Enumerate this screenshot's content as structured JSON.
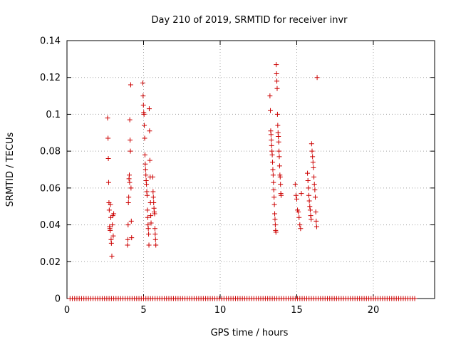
{
  "chart_data": {
    "type": "scatter",
    "title": "Day 210 of 2019, SRMTID for receiver invr",
    "xlabel": "GPS time / hours",
    "ylabel": "SRMTID / TECUs",
    "xlim": [
      0,
      24
    ],
    "ylim": [
      0,
      0.14
    ],
    "xticks": [
      0,
      5,
      10,
      15,
      20
    ],
    "xtick_labels": [
      "0",
      "5",
      "10",
      "15",
      "20"
    ],
    "yticks": [
      0,
      0.02,
      0.04,
      0.06,
      0.08,
      0.1,
      0.12,
      0.14
    ],
    "ytick_labels": [
      "0",
      "0.02",
      "0.04",
      "0.06",
      "0.08",
      "0.1",
      "0.12",
      "0.14"
    ],
    "grid": true,
    "legend": "none",
    "marker": "+",
    "color": "#cc0000",
    "series": [
      {
        "x": [
          2.65,
          2.68,
          2.7,
          2.72,
          2.74,
          2.76,
          2.78,
          2.8,
          2.82,
          2.84,
          2.86,
          2.88,
          2.9,
          2.93,
          2.96,
          2.99,
          3.02,
          3.05,
          3.95,
          3.97,
          3.99,
          4.01,
          4.03,
          4.05,
          4.07,
          4.09,
          4.1,
          4.12,
          4.14,
          4.16,
          4.18,
          4.2,
          4.22,
          4.95,
          4.97,
          4.99,
          5.01,
          5.03,
          5.05,
          5.07,
          5.09,
          5.11,
          5.13,
          5.15,
          5.17,
          5.19,
          5.21,
          5.23,
          5.25,
          5.27,
          5.29,
          5.31,
          5.33,
          5.35,
          5.37,
          5.39,
          5.41,
          5.43,
          5.45,
          5.47,
          5.49,
          5.6,
          5.62,
          5.64,
          5.66,
          5.68,
          5.7,
          5.72,
          5.74,
          5.76,
          5.78,
          5.8,
          13.25,
          13.28,
          13.3,
          13.32,
          13.34,
          13.36,
          13.38,
          13.4,
          13.42,
          13.44,
          13.46,
          13.48,
          13.5,
          13.52,
          13.54,
          13.56,
          13.58,
          13.6,
          13.62,
          13.64,
          13.66,
          13.68,
          13.7,
          13.72,
          13.74,
          13.76,
          13.78,
          13.8,
          13.82,
          13.84,
          13.86,
          13.88,
          13.9,
          13.92,
          13.94,
          13.96,
          13.98,
          14.9,
          14.95,
          15.0,
          15.05,
          15.1,
          15.15,
          15.2,
          15.25,
          15.3,
          15.7,
          15.73,
          15.76,
          15.79,
          15.82,
          15.85,
          15.88,
          15.91,
          15.94,
          15.97,
          16.0,
          16.03,
          16.06,
          16.09,
          16.12,
          16.15,
          16.18,
          16.21,
          16.24,
          16.27,
          16.3,
          16.33
        ],
        "y": [
          0.098,
          0.087,
          0.076,
          0.063,
          0.052,
          0.048,
          0.039,
          0.038,
          0.037,
          0.051,
          0.044,
          0.032,
          0.03,
          0.023,
          0.04,
          0.045,
          0.034,
          0.046,
          0.029,
          0.032,
          0.04,
          0.052,
          0.055,
          0.065,
          0.067,
          0.063,
          0.097,
          0.086,
          0.08,
          0.116,
          0.06,
          0.042,
          0.033,
          0.117,
          0.11,
          0.105,
          0.101,
          0.1,
          0.094,
          0.087,
          0.078,
          0.073,
          0.07,
          0.067,
          0.064,
          0.062,
          0.058,
          0.056,
          0.048,
          0.044,
          0.04,
          0.038,
          0.035,
          0.029,
          0.103,
          0.091,
          0.075,
          0.066,
          0.052,
          0.045,
          0.041,
          0.066,
          0.058,
          0.055,
          0.052,
          0.049,
          0.047,
          0.046,
          0.038,
          0.035,
          0.032,
          0.029,
          0.11,
          0.102,
          0.091,
          0.089,
          0.086,
          0.083,
          0.08,
          0.078,
          0.074,
          0.07,
          0.067,
          0.063,
          0.059,
          0.055,
          0.051,
          0.046,
          0.043,
          0.04,
          0.037,
          0.036,
          0.127,
          0.122,
          0.118,
          0.114,
          0.1,
          0.094,
          0.09,
          0.088,
          0.085,
          0.08,
          0.077,
          0.072,
          0.067,
          0.066,
          0.062,
          0.057,
          0.056,
          0.062,
          0.056,
          0.054,
          0.048,
          0.047,
          0.044,
          0.04,
          0.038,
          0.057,
          0.068,
          0.064,
          0.06,
          0.056,
          0.053,
          0.05,
          0.048,
          0.045,
          0.043,
          0.084,
          0.08,
          0.077,
          0.074,
          0.071,
          0.066,
          0.062,
          0.059,
          0.055,
          0.047,
          0.042,
          0.039,
          0.12
        ],
        "zero_x": [
          0.2,
          0.35,
          0.5,
          0.65,
          0.8,
          0.95,
          1.1,
          1.25,
          1.4,
          1.55,
          1.7,
          1.85,
          2.0,
          2.15,
          2.3,
          2.45,
          2.6,
          2.75,
          2.9,
          3.05,
          3.2,
          3.35,
          3.5,
          3.65,
          3.8,
          3.95,
          4.1,
          4.25,
          4.4,
          4.55,
          4.7,
          4.85,
          5.0,
          5.15,
          5.3,
          5.45,
          5.6,
          5.75,
          5.9,
          6.05,
          6.2,
          6.35,
          6.5,
          6.65,
          6.8,
          6.95,
          7.1,
          7.25,
          7.4,
          7.55,
          7.7,
          7.85,
          8.0,
          8.15,
          8.3,
          8.45,
          8.6,
          8.75,
          8.9,
          9.05,
          9.2,
          9.35,
          9.5,
          9.65,
          9.8,
          9.95,
          10.1,
          10.25,
          10.4,
          10.55,
          10.7,
          10.85,
          11.0,
          11.15,
          11.3,
          11.45,
          11.6,
          11.75,
          11.9,
          12.05,
          12.2,
          12.35,
          12.5,
          12.65,
          12.8,
          12.95,
          13.1,
          13.25,
          13.4,
          13.55,
          13.7,
          13.85,
          14.0,
          14.15,
          14.3,
          14.45,
          14.6,
          14.75,
          14.9,
          15.05,
          15.2,
          15.35,
          15.5,
          15.65,
          15.8,
          15.95,
          16.1,
          16.25,
          16.4,
          16.55,
          16.7,
          16.85,
          17.0,
          17.15,
          17.3,
          17.45,
          17.6,
          17.75,
          17.9,
          18.05,
          18.2,
          18.35,
          18.5,
          18.65,
          18.8,
          18.95,
          19.1,
          19.25,
          19.4,
          19.55,
          19.7,
          19.85,
          20.0,
          20.15,
          20.3,
          20.45,
          20.6,
          20.75,
          20.9,
          21.05,
          21.2,
          21.35,
          21.5,
          21.65,
          21.8,
          21.95,
          22.1,
          22.25,
          22.4,
          22.55,
          22.7
        ]
      }
    ]
  }
}
